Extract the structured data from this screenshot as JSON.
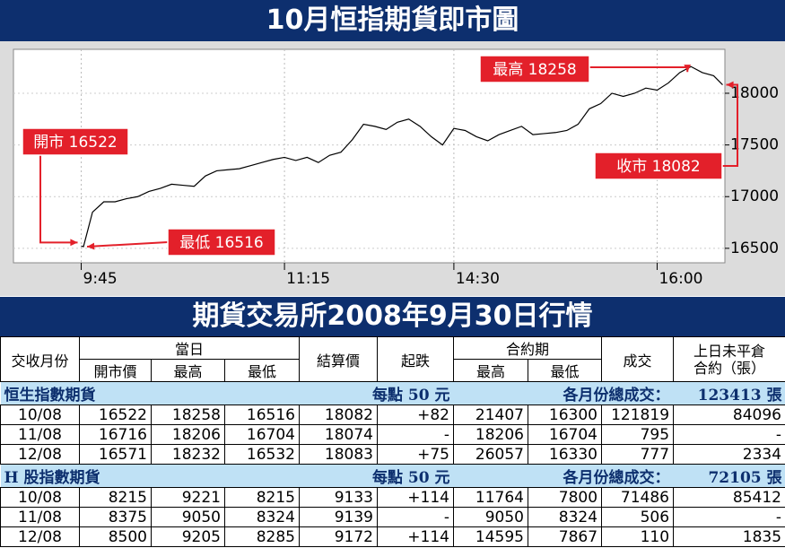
{
  "chart_data": {
    "type": "line",
    "title": "10月恒指期貨即市圖",
    "x": [
      0,
      1,
      5,
      10,
      15,
      20,
      25,
      30,
      35,
      40,
      45,
      50,
      55,
      60,
      65,
      70,
      75,
      80,
      85,
      90,
      95,
      100,
      105,
      110,
      115,
      120,
      125,
      130,
      135,
      140,
      145,
      150,
      155,
      160,
      165,
      170,
      175,
      180,
      185,
      190,
      195,
      200,
      205,
      210,
      215,
      220,
      225,
      230,
      235,
      240,
      245,
      250,
      255,
      260,
      265,
      270,
      275,
      280,
      284
    ],
    "series": [
      {
        "color": "#000000",
        "values": [
          16522,
          16516,
          16850,
          16950,
          16950,
          16980,
          17000,
          17050,
          17080,
          17120,
          17110,
          17100,
          17200,
          17250,
          17260,
          17270,
          17300,
          17330,
          17360,
          17380,
          17350,
          17380,
          17330,
          17400,
          17430,
          17550,
          17700,
          17680,
          17650,
          17720,
          17750,
          17680,
          17580,
          17500,
          17660,
          17640,
          17580,
          17540,
          17600,
          17640,
          17680,
          17600,
          17610,
          17620,
          17640,
          17700,
          17850,
          17900,
          18000,
          17970,
          18000,
          18050,
          18030,
          18100,
          18200,
          18258,
          18200,
          18170,
          18082
        ]
      }
    ],
    "xlim": [
      -30,
      285
    ],
    "xticks": [
      {
        "value": 0,
        "label": "9:45"
      },
      {
        "value": 90,
        "label": "11:15"
      },
      {
        "value": 165,
        "label": "14:30"
      },
      {
        "value": 255,
        "label": "16:00"
      }
    ],
    "ylim": [
      16360,
      18425
    ],
    "yticks": [
      16500,
      17000,
      17500,
      18000
    ],
    "grid": true,
    "annotations": [
      {
        "label": "開市",
        "value": 16522
      },
      {
        "label": "最高",
        "value": 18258
      },
      {
        "label": "最低",
        "value": 16516
      },
      {
        "label": "收市",
        "value": 18082
      }
    ],
    "annotation_color": "#e3202a"
  },
  "table": {
    "title": "期貨交易所2008年9月30日行情",
    "header": {
      "month": "交收月份",
      "day": "當日",
      "open": "開市價",
      "high": "最高",
      "low": "最低",
      "settle": "結算價",
      "change": "起跌",
      "contract": "合約期",
      "c_high": "最高",
      "c_low": "最低",
      "volume": "成交",
      "oi_1": "上日未平倉",
      "oi_2": "合約（張）"
    },
    "sections": [
      {
        "name": "恒生指數期貨",
        "point": "每點 50 元",
        "total_label": "各月份總成交：",
        "total": "123413 張",
        "rows": [
          [
            "10/08",
            "16522",
            "18258",
            "16516",
            "18082",
            "+82",
            "21407",
            "16300",
            "121819",
            "84096"
          ],
          [
            "11/08",
            "16716",
            "18206",
            "16704",
            "18074",
            "-",
            "18206",
            "16704",
            "795",
            "-"
          ],
          [
            "12/08",
            "16571",
            "18232",
            "16532",
            "18083",
            "+75",
            "26057",
            "16330",
            "777",
            "2334"
          ]
        ]
      },
      {
        "name": "H 股指數期貨",
        "point": "每點 50 元",
        "total_label": "各月份總成交：",
        "total": "72105 張",
        "rows": [
          [
            "10/08",
            "8215",
            "9221",
            "8215",
            "9133",
            "+114",
            "11764",
            "7800",
            "71486",
            "85412"
          ],
          [
            "11/08",
            "8375",
            "9050",
            "8324",
            "9139",
            "-",
            "9050",
            "8324",
            "506",
            "-"
          ],
          [
            "12/08",
            "8500",
            "9205",
            "8285",
            "9172",
            "+114",
            "14595",
            "7867",
            "110",
            "1835"
          ]
        ]
      }
    ]
  }
}
